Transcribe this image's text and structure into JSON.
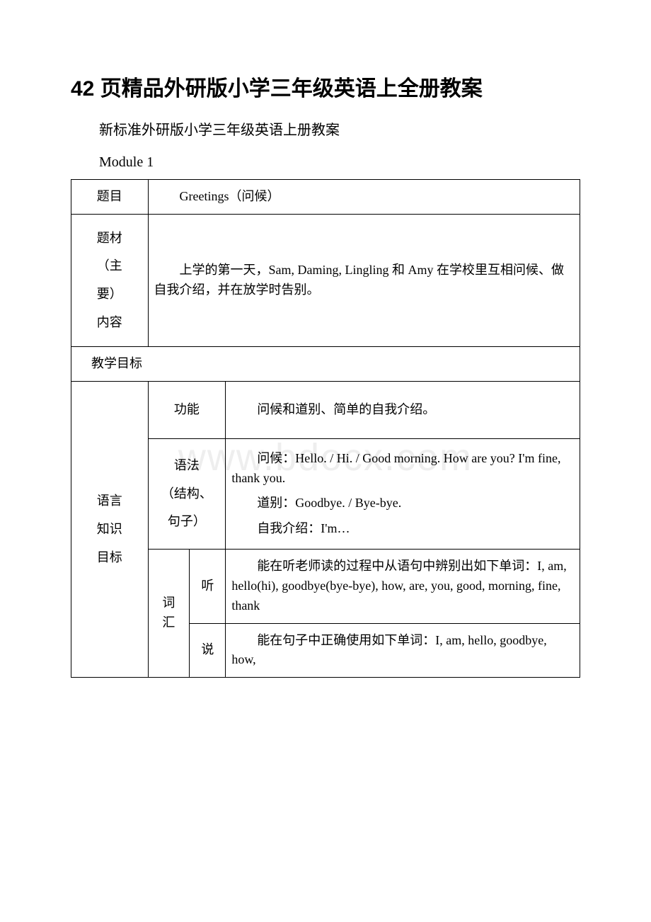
{
  "title": "42 页精品外研版小学三年级英语上全册教案",
  "intro_text": "新标准外研版小学三年级英语上册教案",
  "module_label": "Module 1",
  "watermark_text": "www.bdocx.com",
  "rows": {
    "topic_label": "题目",
    "topic_value": "Greetings（问候）",
    "theme_label_line1": "题材",
    "theme_label_line2": "（主要）",
    "theme_label_line3": "内容",
    "theme_value": "上学的第一天，Sam, Daming, Lingling 和 Amy 在学校里互相问候、做自我介绍，并在放学时告别。",
    "goal_label": "教学目标",
    "lang_goal_line1": "语言",
    "lang_goal_line2": "知识",
    "lang_goal_line3": "目标",
    "function_label": "功能",
    "function_value": "问候和道别、简单的自我介绍。",
    "grammar_label_line1": "语法",
    "grammar_label_line2": "（结构、",
    "grammar_label_line3": "句子）",
    "grammar_p1": "问候：Hello. / Hi. / Good morning. How are you? I'm fine, thank you.",
    "grammar_p2": "道别：Goodbye. / Bye-bye.",
    "grammar_p3": "自我介绍：I'm…",
    "vocab_label": "词汇",
    "listen_label": "听",
    "listen_value": "能在听老师读的过程中从语句中辨别出如下单词：I, am, hello(hi), goodbye(bye-bye), how, are, you, good, morning, fine, thank",
    "speak_label": "说",
    "speak_value": "能在句子中正确使用如下单词：I, am, hello, goodbye, how,"
  }
}
